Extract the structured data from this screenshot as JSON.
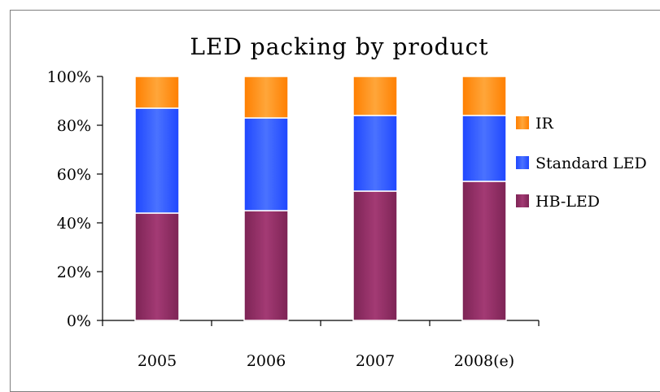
{
  "chart_data": {
    "type": "bar",
    "stacked": true,
    "title": "LED packing by product",
    "categories": [
      "2005",
      "2006",
      "2007",
      "2008(e)"
    ],
    "series": [
      {
        "name": "HB-LED",
        "color": "#993366",
        "values": [
          44,
          45,
          53,
          57
        ]
      },
      {
        "name": "Standard LED",
        "color": "#3366ff",
        "values": [
          43,
          38,
          31,
          27
        ]
      },
      {
        "name": "IR",
        "color": "#ff9900",
        "values": [
          13,
          17,
          16,
          16
        ]
      }
    ],
    "yticks": [
      "0%",
      "20%",
      "40%",
      "60%",
      "80%",
      "100%"
    ],
    "ylim": [
      0,
      100
    ],
    "legend_position": "right",
    "legend_order": [
      "IR",
      "Standard LED",
      "HB-LED"
    ],
    "grid": false
  }
}
